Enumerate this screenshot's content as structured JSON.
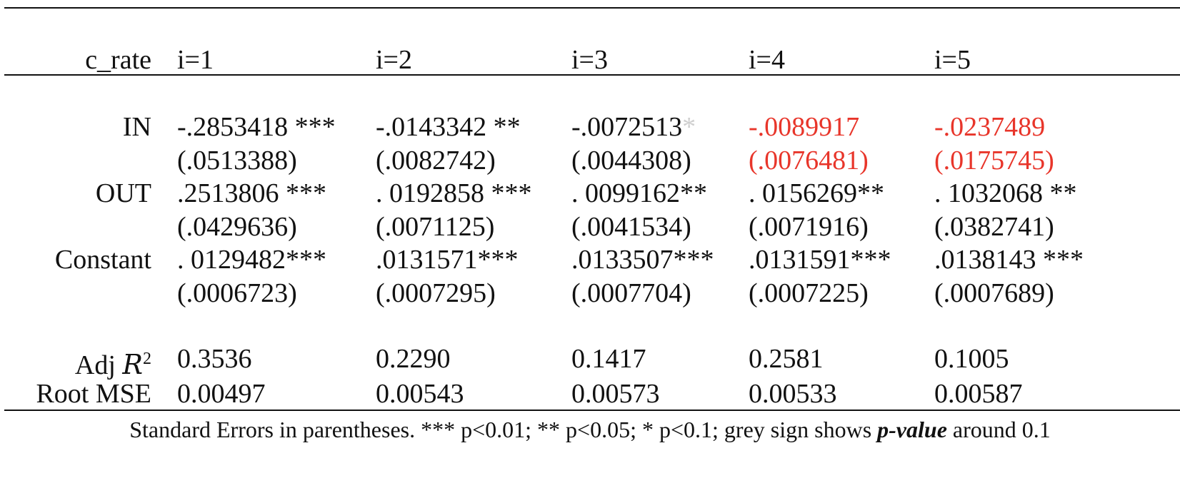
{
  "table": {
    "header": {
      "dependent": "c_rate",
      "columns": [
        "i=1",
        "i=2",
        "i=3",
        "i=4",
        "i=5"
      ]
    },
    "rows": {
      "in": {
        "label": "IN",
        "coef": [
          "-.2853418",
          "-.0143342",
          "-.0072513",
          "-.0089917",
          "-.0237489"
        ],
        "stars": [
          " ***",
          " **",
          "*",
          "",
          ""
        ],
        "se": [
          "(.0513388)",
          "(.0082742)",
          "(.0044308)",
          "(.0076481)",
          "(.0175745)"
        ]
      },
      "out": {
        "label": "OUT",
        "coef": [
          ".2513806 ***",
          ". 0192858 ***",
          ". 0099162**",
          ". 0156269**",
          ". 1032068 **"
        ],
        "se": [
          "(.0429636)",
          "(.0071125)",
          "(.0041534)",
          "(.0071916)",
          "(.0382741)"
        ]
      },
      "constant": {
        "label": "Constant",
        "coef": [
          ". 0129482***",
          ".0131571***",
          ".0133507***",
          ".0131591***",
          ".0138143 ***"
        ],
        "se": [
          "(.0006723)",
          "(.0007295)",
          "(.0007704)",
          "(.0007225)",
          "(.0007689)"
        ]
      },
      "adj_r2": {
        "label_prefix": "Adj ",
        "label_var": "R",
        "label_sup": "2",
        "values": [
          "0.3536",
          "0.2290",
          "0.1417",
          "0.2581",
          "0.1005"
        ]
      },
      "root_mse": {
        "label": "Root MSE",
        "values": [
          "0.00497",
          "0.00543",
          "0.00573",
          "0.00533",
          "0.00587"
        ]
      }
    },
    "footnote": {
      "text_before": "Standard Errors in parentheses. *** p<0.01; ** p<0.05; * p<0.1; grey sign shows ",
      "emphasis": "p-value",
      "text_after": " around 0.1"
    },
    "colors": {
      "text": "#111111",
      "highlight_red": "#e8352a",
      "grey_star": "#cfcfcf"
    }
  }
}
